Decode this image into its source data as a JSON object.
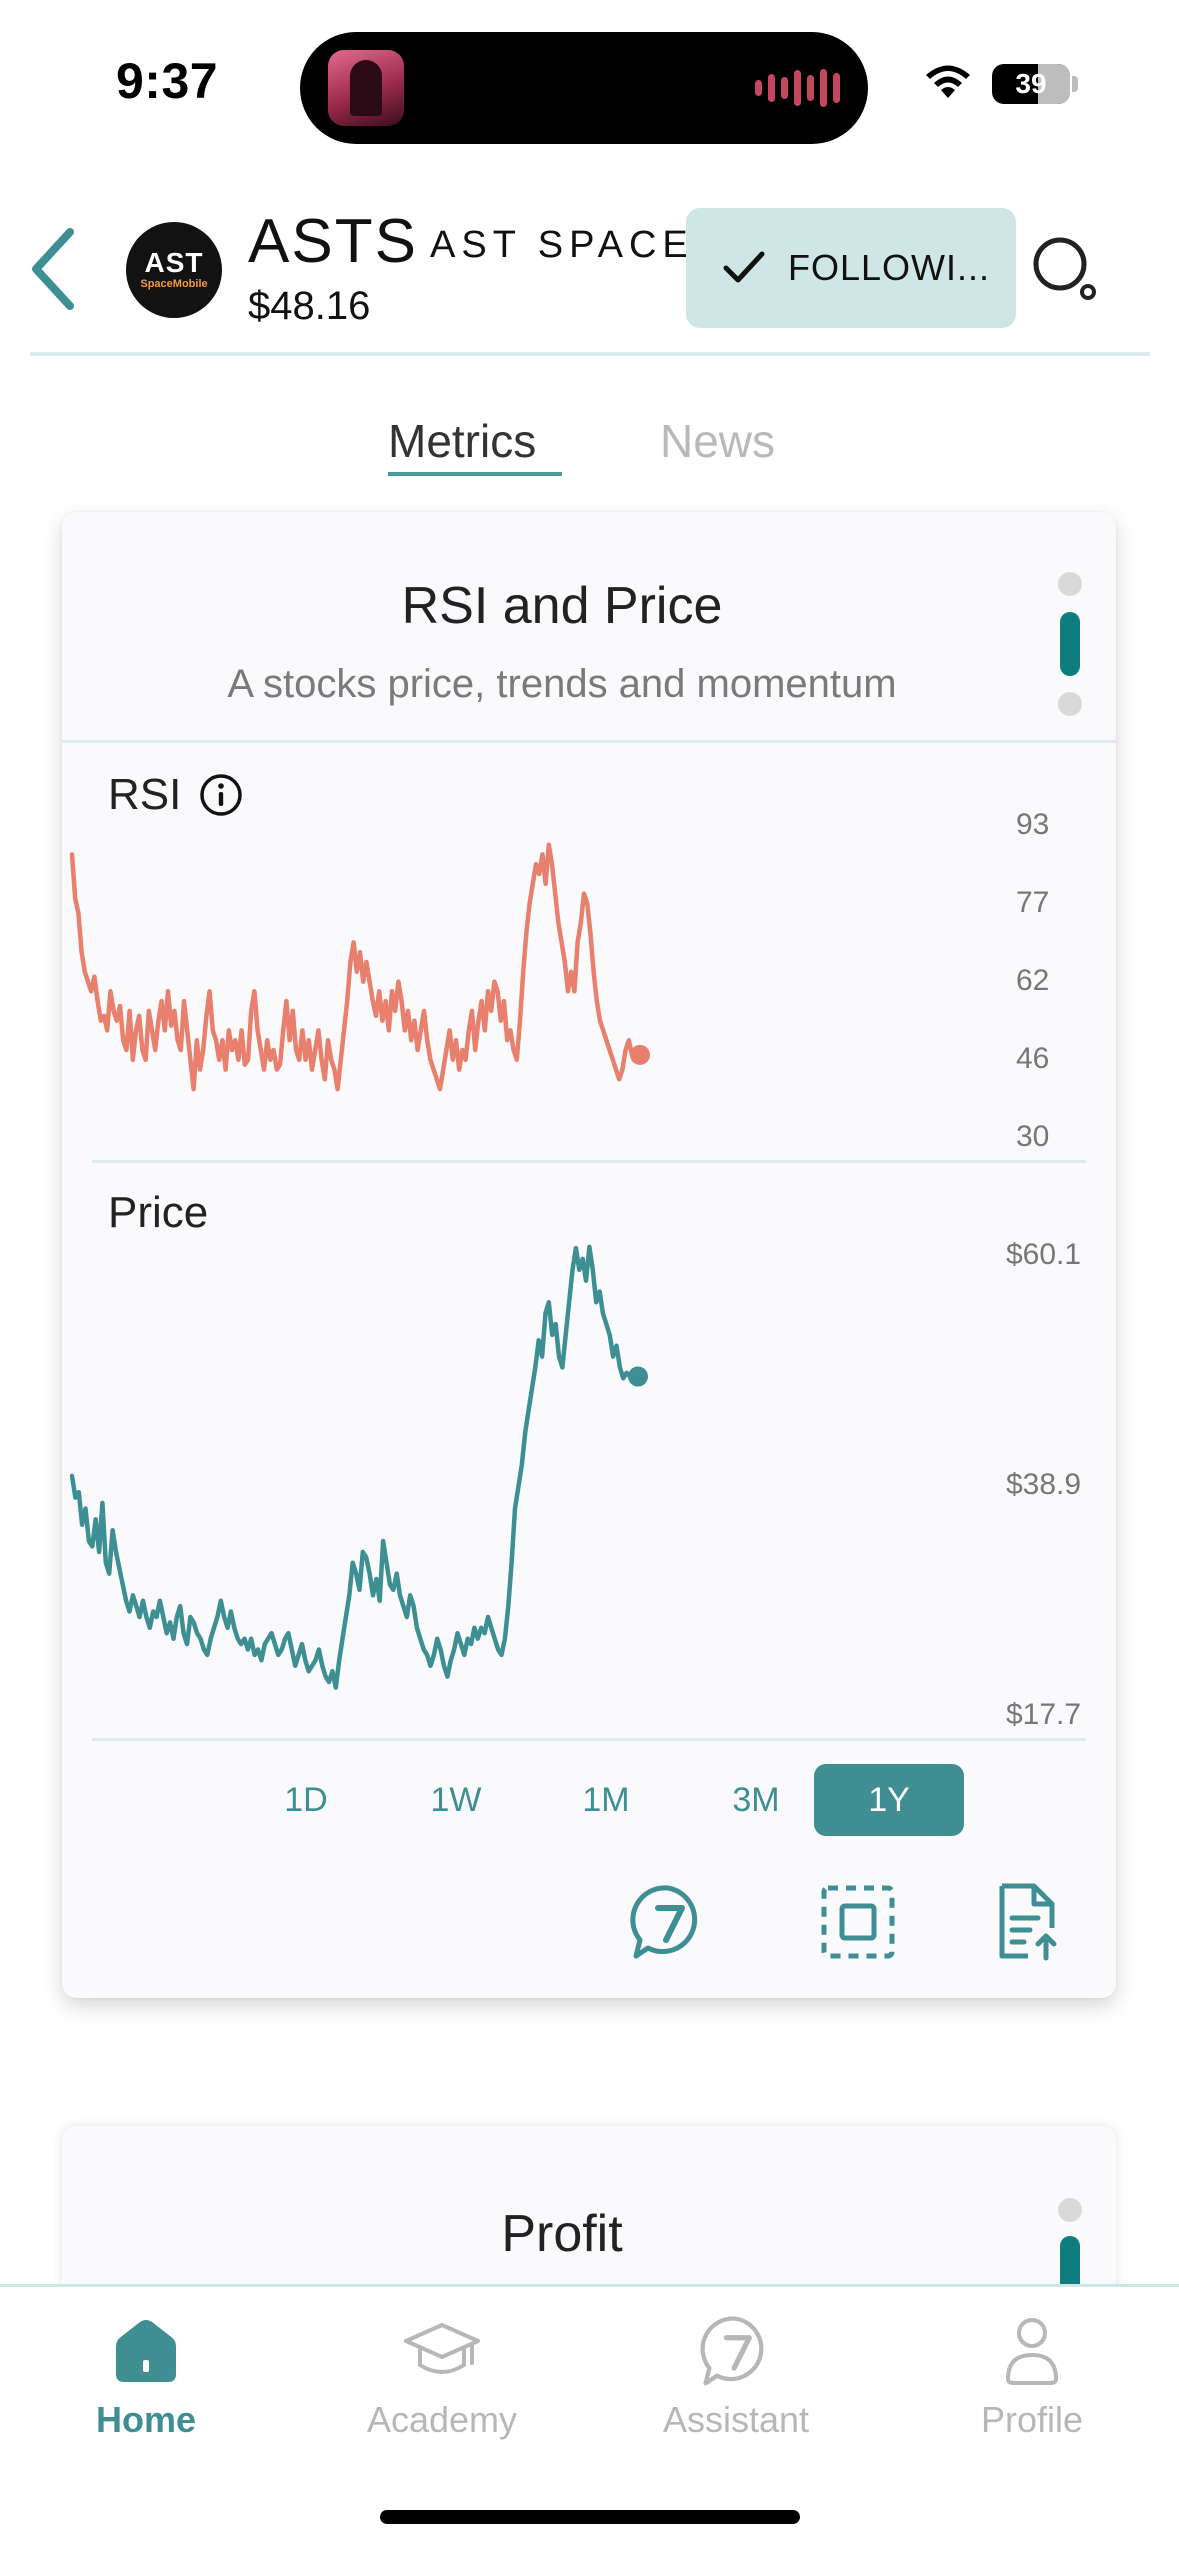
{
  "status_bar": {
    "time": "9:37",
    "battery": "39"
  },
  "header": {
    "logo_top": "AST",
    "logo_bottom": "SpaceMobile",
    "ticker": "ASTS",
    "company": "AST SPACEMOBILE",
    "price": "$48.16",
    "follow_label": "FOLLOWI..."
  },
  "tabs": [
    {
      "label": "Metrics",
      "active": true
    },
    {
      "label": "News",
      "active": false
    }
  ],
  "card": {
    "title": "RSI and Price",
    "subtitle": "A stocks price, trends and momentum",
    "rsi_label": "RSI",
    "price_label": "Price",
    "rsi_ticks": [
      "93",
      "77",
      "62",
      "46",
      "30"
    ],
    "price_ticks": [
      "$60.1",
      "$38.9",
      "$17.7"
    ],
    "ranges": [
      "1D",
      "1W",
      "1M",
      "3M",
      "1Y"
    ],
    "active_range": "1Y"
  },
  "colors": {
    "accent": "#3f8e92",
    "rsi_line": "#e8806d",
    "price_line": "#3d8f93",
    "follow_bg": "#cfe6e6"
  },
  "chart_data": [
    {
      "type": "line",
      "title": "RSI",
      "ylim": [
        30,
        93
      ],
      "series": [
        {
          "values": [
            88,
            79,
            76,
            68,
            64,
            62,
            60,
            63,
            58,
            54,
            55,
            52,
            60,
            56,
            54,
            57,
            50,
            48,
            56,
            46,
            52,
            55,
            48,
            46,
            56,
            52,
            48,
            54,
            58,
            52,
            60,
            53,
            56,
            50,
            48,
            58,
            52,
            46,
            40,
            50,
            44,
            48,
            55,
            60,
            52,
            50,
            46,
            50,
            44,
            52,
            48,
            50,
            46,
            52,
            45,
            46,
            56,
            60,
            52,
            48,
            44,
            50,
            46,
            48,
            44,
            45,
            52,
            58,
            50,
            56,
            48,
            46,
            52,
            46,
            50,
            44,
            48,
            52,
            46,
            42,
            50,
            46,
            44,
            40,
            46,
            52,
            58,
            66,
            70,
            64,
            68,
            62,
            66,
            62,
            58,
            55,
            60,
            54,
            58,
            52,
            60,
            56,
            62,
            58,
            52,
            56,
            50,
            54,
            48,
            52,
            56,
            50,
            46,
            44,
            42,
            40,
            44,
            48,
            52,
            46,
            50,
            44,
            48,
            46,
            52,
            56,
            48,
            54,
            58,
            52,
            60,
            56,
            62,
            60,
            54,
            58,
            50,
            52,
            48,
            46,
            54,
            64,
            72,
            78,
            82,
            86,
            84,
            88,
            82,
            90,
            86,
            80,
            74,
            70,
            66,
            60,
            64,
            60,
            70,
            74,
            80,
            78,
            72,
            64,
            58,
            54,
            52,
            50,
            48,
            46,
            44,
            42,
            44,
            48,
            50,
            47
          ]
        }
      ]
    },
    {
      "type": "line",
      "title": "Price",
      "ylim": [
        17.7,
        60.1
      ],
      "series": [
        {
          "values": [
            39,
            37,
            37.5,
            34.5,
            36,
            33,
            32.5,
            35,
            32,
            36.5,
            31,
            30,
            34,
            32,
            30.5,
            29,
            27.5,
            26.5,
            28,
            27,
            26,
            27.5,
            26,
            25,
            26.5,
            26,
            27.5,
            26,
            24.5,
            25.5,
            24,
            26,
            27,
            24.5,
            23.5,
            26,
            25.5,
            24.5,
            24,
            23,
            22.5,
            24,
            25,
            26,
            27.5,
            26,
            25,
            26.5,
            25,
            24,
            23.5,
            24,
            23,
            24,
            22.5,
            23,
            22,
            23.5,
            24,
            24.5,
            23.5,
            22.5,
            23,
            24,
            24.5,
            23,
            21.5,
            22.5,
            23.5,
            22,
            21,
            21.5,
            22,
            23,
            21.5,
            20.5,
            20,
            21,
            19.5,
            22,
            24,
            26,
            28,
            31,
            30,
            28.5,
            32,
            31.5,
            30,
            28,
            29.5,
            27.5,
            33,
            31,
            29,
            28.5,
            30,
            28,
            27,
            26,
            28,
            27,
            25,
            24,
            23,
            22.5,
            21.5,
            22.5,
            24,
            23,
            21.5,
            20.5,
            22,
            23,
            24.5,
            23.5,
            22.5,
            24,
            23.5,
            25,
            24,
            25,
            24.5,
            26,
            25,
            24,
            23,
            22.5,
            24,
            27,
            31,
            36,
            38,
            40,
            43,
            45,
            47,
            49,
            51.5,
            50,
            54,
            55,
            52,
            53,
            50,
            49,
            52,
            55,
            58,
            60,
            58,
            59,
            57,
            60.1,
            58,
            55,
            56,
            54,
            53,
            52,
            50,
            51,
            49,
            48,
            48.5,
            48.16
          ]
        }
      ]
    }
  ],
  "card2": {
    "title": "Profit"
  },
  "nav": [
    {
      "label": "Home",
      "icon": "home-icon",
      "active": true
    },
    {
      "label": "Academy",
      "icon": "graduation-cap-icon",
      "active": false
    },
    {
      "label": "Assistant",
      "icon": "assistant-icon",
      "active": false
    },
    {
      "label": "Profile",
      "icon": "user-icon",
      "active": false
    }
  ]
}
